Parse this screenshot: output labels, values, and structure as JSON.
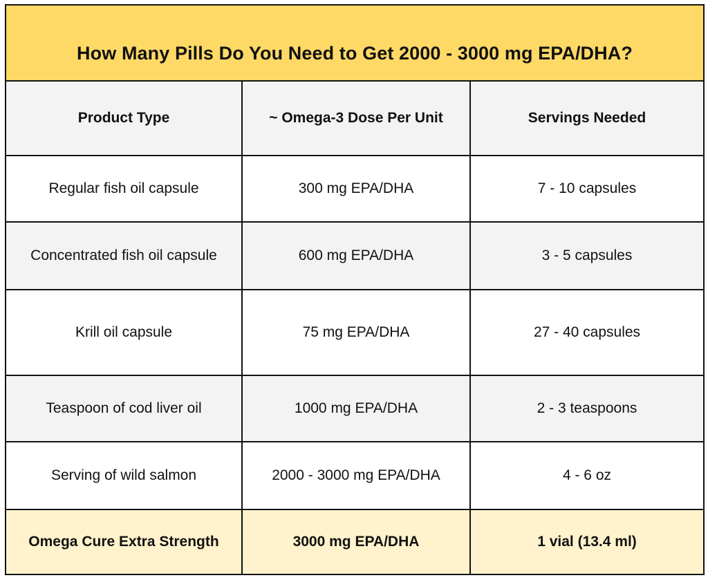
{
  "title": "How Many Pills Do You Need to Get 2000 - 3000 mg EPA/DHA?",
  "colors": {
    "title_bg": "#ffd966",
    "header_bg": "#f3f3f3",
    "alt_row_bg": "#f3f3f3",
    "highlight_bg": "#fff2cc",
    "border": "#111111"
  },
  "table": {
    "headers": [
      "Product Type",
      "~ Omega-3 Dose Per Unit",
      "Servings Needed"
    ],
    "rows": [
      [
        "Regular fish oil capsule",
        "300 mg EPA/DHA",
        "7 - 10 capsules"
      ],
      [
        "Concentrated fish oil capsule",
        "600 mg EPA/DHA",
        "3 - 5 capsules"
      ],
      [
        "Krill oil capsule",
        "75 mg EPA/DHA",
        "27 - 40 capsules"
      ],
      [
        "Teaspoon of cod liver oil",
        "1000 mg EPA/DHA",
        "2 - 3 teaspoons"
      ],
      [
        "Serving of wild salmon",
        "2000 - 3000 mg EPA/DHA",
        "4 - 6 oz"
      ],
      [
        "Omega Cure Extra Strength",
        "3000 mg EPA/DHA",
        "1 vial (13.4 ml)"
      ]
    ]
  }
}
